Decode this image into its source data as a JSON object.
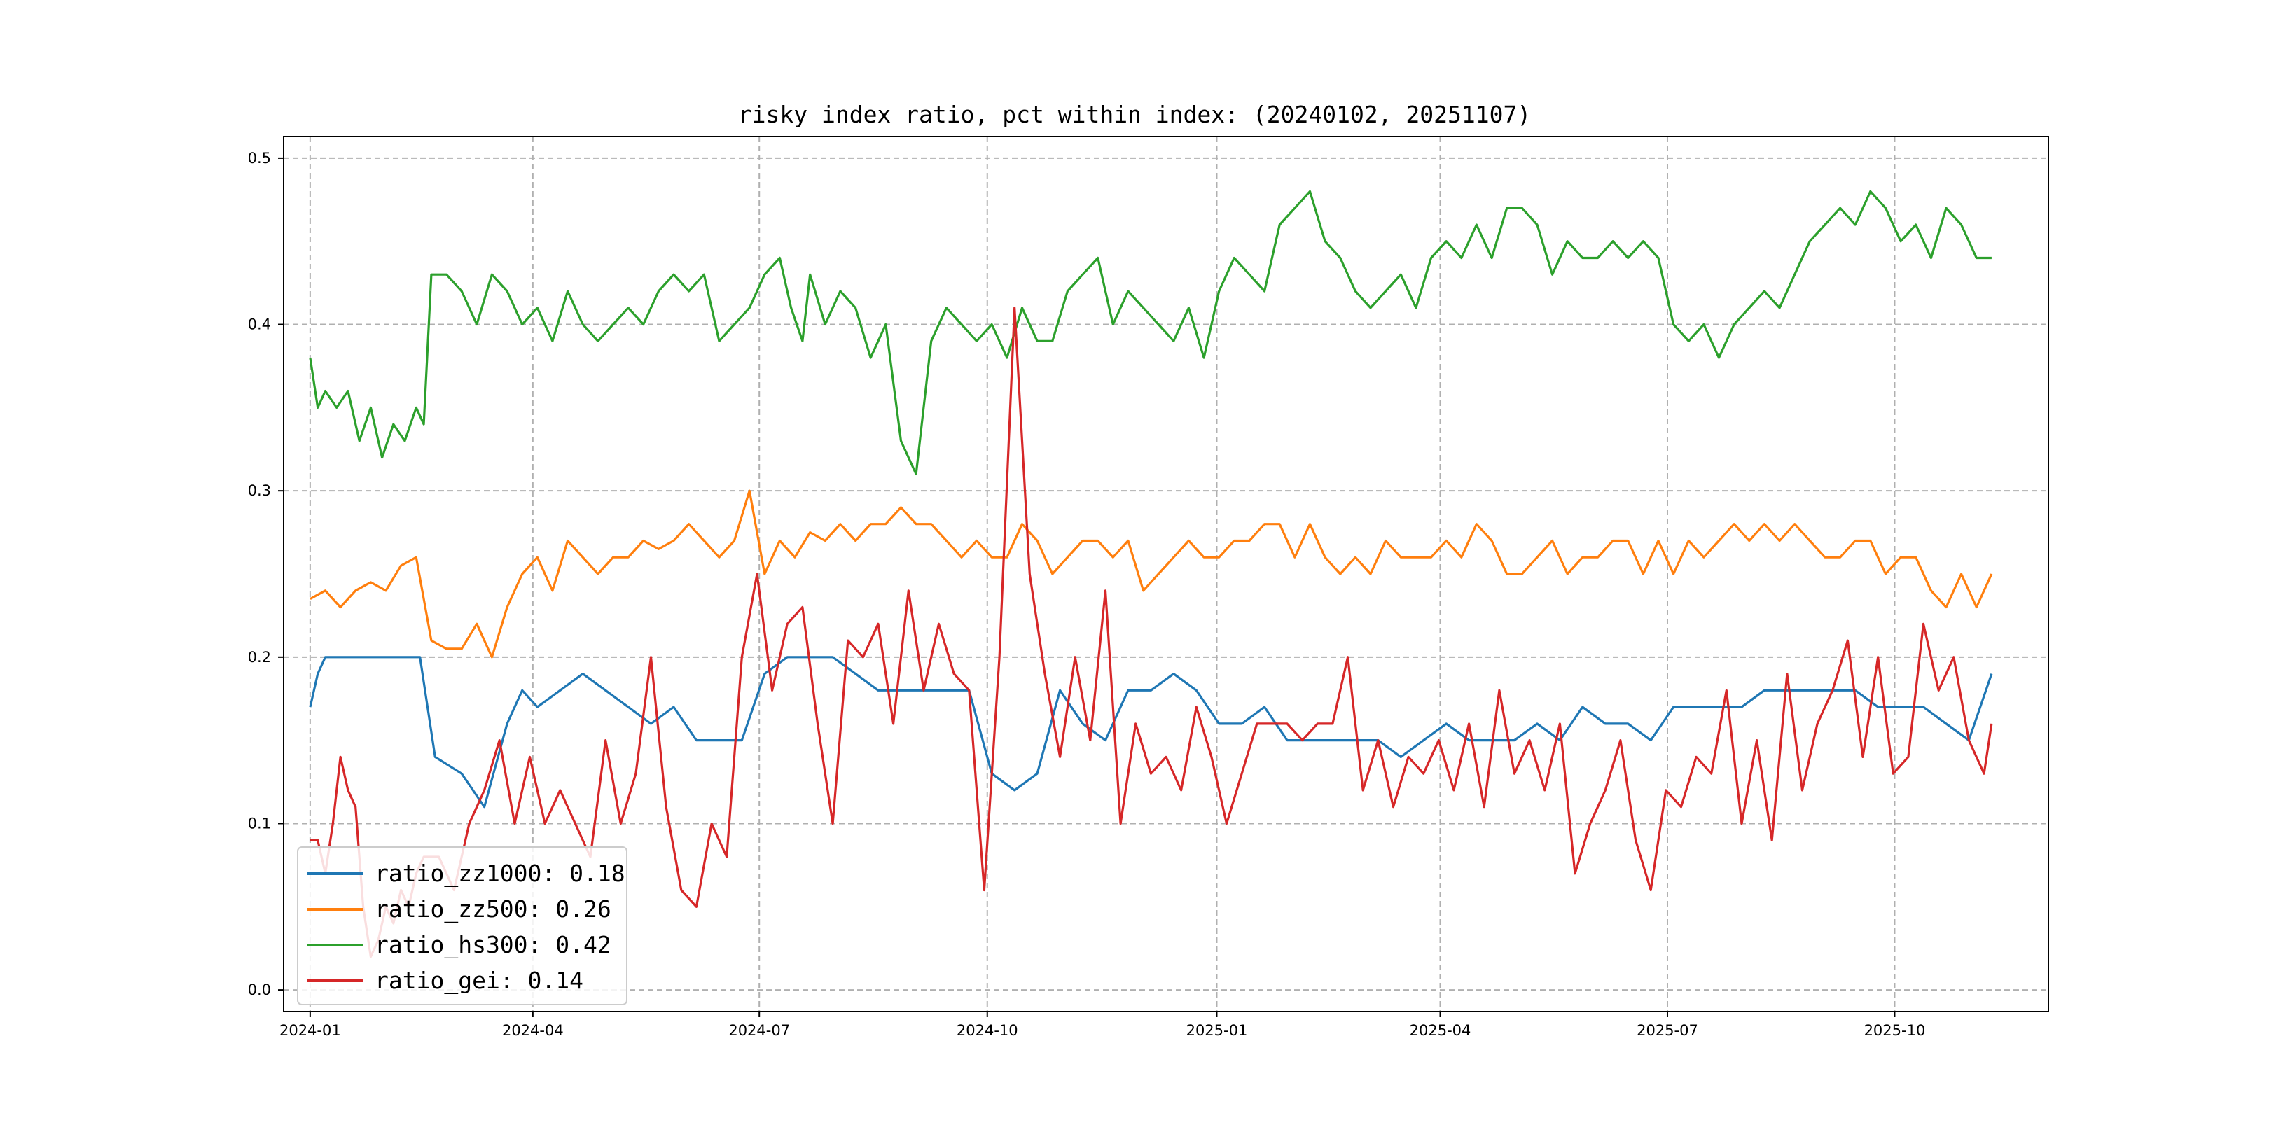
{
  "chart_data": {
    "type": "line",
    "title": "risky index ratio, pct within index: (20240102, 20251107)",
    "xlabel": "",
    "ylabel": "",
    "x_range": [
      "2024-01-02",
      "2025-11-07"
    ],
    "xlim": [
      -0.35,
      22.95
    ],
    "ylim": [
      -0.013,
      0.513
    ],
    "grid": true,
    "legend_position": "lower-left",
    "x_ticks": [
      {
        "label": "2024-01",
        "pos": 0
      },
      {
        "label": "2024-04",
        "pos": 2.94
      },
      {
        "label": "2024-07",
        "pos": 5.93
      },
      {
        "label": "2024-10",
        "pos": 8.94
      },
      {
        "label": "2025-01",
        "pos": 11.97
      },
      {
        "label": "2025-04",
        "pos": 14.92
      },
      {
        "label": "2025-07",
        "pos": 17.92
      },
      {
        "label": "2025-10",
        "pos": 20.92
      }
    ],
    "y_ticks": [
      0.0,
      0.1,
      0.2,
      0.3,
      0.4,
      0.5
    ],
    "y_tick_labels": [
      "0.0",
      "0.1",
      "0.2",
      "0.3",
      "0.4",
      "0.5"
    ],
    "series": [
      {
        "name": "ratio_zz1000",
        "legend_label": "ratio_zz1000: 0.18",
        "color": "#1f77b4",
        "x": [
          0.0,
          0.1,
          0.2,
          0.35,
          0.5,
          0.7,
          0.9,
          1.1,
          1.3,
          1.45,
          1.55,
          1.65,
          2.0,
          2.3,
          2.6,
          2.8,
          3.0,
          3.3,
          3.6,
          3.9,
          4.2,
          4.5,
          4.8,
          5.1,
          5.4,
          5.7,
          6.0,
          6.3,
          6.6,
          6.9,
          7.2,
          7.5,
          7.8,
          8.1,
          8.4,
          8.7,
          9.0,
          9.3,
          9.6,
          9.9,
          10.2,
          10.5,
          10.8,
          11.1,
          11.4,
          11.7,
          12.0,
          12.3,
          12.6,
          12.9,
          13.2,
          13.5,
          13.8,
          14.1,
          14.4,
          14.7,
          15.0,
          15.3,
          15.6,
          15.9,
          16.2,
          16.5,
          16.8,
          17.1,
          17.4,
          17.7,
          18.0,
          18.3,
          18.6,
          18.9,
          19.2,
          19.5,
          19.8,
          20.1,
          20.4,
          20.7,
          21.0,
          21.3,
          21.6,
          21.9,
          22.2
        ],
        "y": [
          0.17,
          0.19,
          0.2,
          0.2,
          0.2,
          0.2,
          0.2,
          0.2,
          0.2,
          0.2,
          0.17,
          0.14,
          0.13,
          0.11,
          0.16,
          0.18,
          0.17,
          0.18,
          0.19,
          0.18,
          0.17,
          0.16,
          0.17,
          0.15,
          0.15,
          0.15,
          0.19,
          0.2,
          0.2,
          0.2,
          0.19,
          0.18,
          0.18,
          0.18,
          0.18,
          0.18,
          0.13,
          0.12,
          0.13,
          0.18,
          0.16,
          0.15,
          0.18,
          0.18,
          0.19,
          0.18,
          0.16,
          0.16,
          0.17,
          0.15,
          0.15,
          0.15,
          0.15,
          0.15,
          0.14,
          0.15,
          0.16,
          0.15,
          0.15,
          0.15,
          0.16,
          0.15,
          0.17,
          0.16,
          0.16,
          0.15,
          0.17,
          0.17,
          0.17,
          0.17,
          0.18,
          0.18,
          0.18,
          0.18,
          0.18,
          0.17,
          0.17,
          0.17,
          0.16,
          0.15,
          0.19
        ]
      },
      {
        "name": "ratio_zz500",
        "legend_label": "ratio_zz500: 0.26",
        "color": "#ff7f0e",
        "x": [
          0.0,
          0.2,
          0.4,
          0.6,
          0.8,
          1.0,
          1.2,
          1.4,
          1.6,
          1.8,
          2.0,
          2.2,
          2.4,
          2.6,
          2.8,
          3.0,
          3.2,
          3.4,
          3.6,
          3.8,
          4.0,
          4.2,
          4.4,
          4.6,
          4.8,
          5.0,
          5.2,
          5.4,
          5.6,
          5.8,
          6.0,
          6.2,
          6.4,
          6.6,
          6.8,
          7.0,
          7.2,
          7.4,
          7.6,
          7.8,
          8.0,
          8.2,
          8.4,
          8.6,
          8.8,
          9.0,
          9.2,
          9.4,
          9.6,
          9.8,
          10.0,
          10.2,
          10.4,
          10.6,
          10.8,
          11.0,
          11.2,
          11.4,
          11.6,
          11.8,
          12.0,
          12.2,
          12.4,
          12.6,
          12.8,
          13.0,
          13.2,
          13.4,
          13.6,
          13.8,
          14.0,
          14.2,
          14.4,
          14.6,
          14.8,
          15.0,
          15.2,
          15.4,
          15.6,
          15.8,
          16.0,
          16.2,
          16.4,
          16.6,
          16.8,
          17.0,
          17.2,
          17.4,
          17.6,
          17.8,
          18.0,
          18.2,
          18.4,
          18.6,
          18.8,
          19.0,
          19.2,
          19.4,
          19.6,
          19.8,
          20.0,
          20.2,
          20.4,
          20.6,
          20.8,
          21.0,
          21.2,
          21.4,
          21.6,
          21.8,
          22.0,
          22.2
        ],
        "y": [
          0.235,
          0.24,
          0.23,
          0.24,
          0.245,
          0.24,
          0.255,
          0.26,
          0.21,
          0.205,
          0.205,
          0.22,
          0.2,
          0.23,
          0.25,
          0.26,
          0.24,
          0.27,
          0.26,
          0.25,
          0.26,
          0.26,
          0.27,
          0.265,
          0.27,
          0.28,
          0.27,
          0.26,
          0.27,
          0.3,
          0.25,
          0.27,
          0.26,
          0.275,
          0.27,
          0.28,
          0.27,
          0.28,
          0.28,
          0.29,
          0.28,
          0.28,
          0.27,
          0.26,
          0.27,
          0.26,
          0.26,
          0.28,
          0.27,
          0.25,
          0.26,
          0.27,
          0.27,
          0.26,
          0.27,
          0.24,
          0.25,
          0.26,
          0.27,
          0.26,
          0.26,
          0.27,
          0.27,
          0.28,
          0.28,
          0.26,
          0.28,
          0.26,
          0.25,
          0.26,
          0.25,
          0.27,
          0.26,
          0.26,
          0.26,
          0.27,
          0.26,
          0.28,
          0.27,
          0.25,
          0.25,
          0.26,
          0.27,
          0.25,
          0.26,
          0.26,
          0.27,
          0.27,
          0.25,
          0.27,
          0.25,
          0.27,
          0.26,
          0.27,
          0.28,
          0.27,
          0.28,
          0.27,
          0.28,
          0.27,
          0.26,
          0.26,
          0.27,
          0.27,
          0.25,
          0.26,
          0.26,
          0.24,
          0.23,
          0.25,
          0.23,
          0.25
        ]
      },
      {
        "name": "ratio_hs300",
        "legend_label": "ratio_hs300: 0.42",
        "color": "#2ca02c",
        "x": [
          0.0,
          0.1,
          0.2,
          0.35,
          0.5,
          0.65,
          0.8,
          0.95,
          1.1,
          1.25,
          1.4,
          1.5,
          1.6,
          1.8,
          2.0,
          2.2,
          2.4,
          2.6,
          2.8,
          3.0,
          3.2,
          3.4,
          3.6,
          3.8,
          4.0,
          4.2,
          4.4,
          4.6,
          4.8,
          5.0,
          5.2,
          5.4,
          5.6,
          5.8,
          6.0,
          6.2,
          6.35,
          6.5,
          6.6,
          6.8,
          7.0,
          7.2,
          7.4,
          7.6,
          7.8,
          8.0,
          8.2,
          8.4,
          8.6,
          8.8,
          9.0,
          9.2,
          9.4,
          9.6,
          9.8,
          10.0,
          10.2,
          10.4,
          10.6,
          10.8,
          11.0,
          11.2,
          11.4,
          11.6,
          11.8,
          12.0,
          12.2,
          12.4,
          12.6,
          12.8,
          13.0,
          13.2,
          13.4,
          13.6,
          13.8,
          14.0,
          14.2,
          14.4,
          14.6,
          14.8,
          15.0,
          15.2,
          15.4,
          15.6,
          15.8,
          16.0,
          16.2,
          16.4,
          16.6,
          16.8,
          17.0,
          17.2,
          17.4,
          17.6,
          17.8,
          18.0,
          18.2,
          18.4,
          18.6,
          18.8,
          19.0,
          19.2,
          19.4,
          19.6,
          19.8,
          20.0,
          20.2,
          20.4,
          20.6,
          20.8,
          21.0,
          21.2,
          21.4,
          21.6,
          21.8,
          22.0,
          22.2
        ],
        "y": [
          0.38,
          0.35,
          0.36,
          0.35,
          0.36,
          0.33,
          0.35,
          0.32,
          0.34,
          0.33,
          0.35,
          0.34,
          0.43,
          0.43,
          0.42,
          0.4,
          0.43,
          0.42,
          0.4,
          0.41,
          0.39,
          0.42,
          0.4,
          0.39,
          0.4,
          0.41,
          0.4,
          0.42,
          0.43,
          0.42,
          0.43,
          0.39,
          0.4,
          0.41,
          0.43,
          0.44,
          0.41,
          0.39,
          0.43,
          0.4,
          0.42,
          0.41,
          0.38,
          0.4,
          0.33,
          0.31,
          0.39,
          0.41,
          0.4,
          0.39,
          0.4,
          0.38,
          0.41,
          0.39,
          0.39,
          0.42,
          0.43,
          0.44,
          0.4,
          0.42,
          0.41,
          0.4,
          0.39,
          0.41,
          0.38,
          0.42,
          0.44,
          0.43,
          0.42,
          0.46,
          0.47,
          0.48,
          0.45,
          0.44,
          0.42,
          0.41,
          0.42,
          0.43,
          0.41,
          0.44,
          0.45,
          0.44,
          0.46,
          0.44,
          0.47,
          0.47,
          0.46,
          0.43,
          0.45,
          0.44,
          0.44,
          0.45,
          0.44,
          0.45,
          0.44,
          0.4,
          0.39,
          0.4,
          0.38,
          0.4,
          0.41,
          0.42,
          0.41,
          0.43,
          0.45,
          0.46,
          0.47,
          0.46,
          0.48,
          0.47,
          0.45,
          0.46,
          0.44,
          0.47,
          0.46,
          0.44,
          0.44
        ]
      },
      {
        "name": "ratio_gei",
        "legend_label": "ratio_gei: 0.14",
        "color": "#d62728",
        "x": [
          0.0,
          0.1,
          0.2,
          0.3,
          0.4,
          0.5,
          0.6,
          0.7,
          0.8,
          0.9,
          1.0,
          1.1,
          1.2,
          1.3,
          1.4,
          1.5,
          1.7,
          1.9,
          2.1,
          2.3,
          2.5,
          2.7,
          2.9,
          3.1,
          3.3,
          3.5,
          3.7,
          3.9,
          4.1,
          4.3,
          4.5,
          4.7,
          4.9,
          5.1,
          5.3,
          5.5,
          5.7,
          5.9,
          6.1,
          6.3,
          6.5,
          6.7,
          6.9,
          7.1,
          7.3,
          7.5,
          7.7,
          7.9,
          8.1,
          8.3,
          8.5,
          8.7,
          8.9,
          9.1,
          9.3,
          9.5,
          9.7,
          9.9,
          10.1,
          10.3,
          10.5,
          10.7,
          10.9,
          11.1,
          11.3,
          11.5,
          11.7,
          11.9,
          12.1,
          12.3,
          12.5,
          12.7,
          12.9,
          13.1,
          13.3,
          13.5,
          13.7,
          13.9,
          14.1,
          14.3,
          14.5,
          14.7,
          14.9,
          15.1,
          15.3,
          15.5,
          15.7,
          15.9,
          16.1,
          16.3,
          16.5,
          16.7,
          16.9,
          17.1,
          17.3,
          17.5,
          17.7,
          17.9,
          18.1,
          18.3,
          18.5,
          18.7,
          18.9,
          19.1,
          19.3,
          19.5,
          19.7,
          19.9,
          20.1,
          20.3,
          20.5,
          20.7,
          20.9,
          21.1,
          21.3,
          21.5,
          21.7,
          21.9,
          22.1,
          22.2
        ],
        "y": [
          0.09,
          0.09,
          0.07,
          0.1,
          0.14,
          0.12,
          0.11,
          0.05,
          0.02,
          0.03,
          0.05,
          0.04,
          0.06,
          0.05,
          0.07,
          0.08,
          0.08,
          0.06,
          0.1,
          0.12,
          0.15,
          0.1,
          0.14,
          0.1,
          0.12,
          0.1,
          0.08,
          0.15,
          0.1,
          0.13,
          0.2,
          0.11,
          0.06,
          0.05,
          0.1,
          0.08,
          0.2,
          0.25,
          0.18,
          0.22,
          0.23,
          0.16,
          0.1,
          0.21,
          0.2,
          0.22,
          0.16,
          0.24,
          0.18,
          0.22,
          0.19,
          0.18,
          0.06,
          0.2,
          0.41,
          0.25,
          0.19,
          0.14,
          0.2,
          0.15,
          0.24,
          0.1,
          0.16,
          0.13,
          0.14,
          0.12,
          0.17,
          0.14,
          0.1,
          0.13,
          0.16,
          0.16,
          0.16,
          0.15,
          0.16,
          0.16,
          0.2,
          0.12,
          0.15,
          0.11,
          0.14,
          0.13,
          0.15,
          0.12,
          0.16,
          0.11,
          0.18,
          0.13,
          0.15,
          0.12,
          0.16,
          0.07,
          0.1,
          0.12,
          0.15,
          0.09,
          0.06,
          0.12,
          0.11,
          0.14,
          0.13,
          0.18,
          0.1,
          0.15,
          0.09,
          0.19,
          0.12,
          0.16,
          0.18,
          0.21,
          0.14,
          0.2,
          0.13,
          0.14,
          0.22,
          0.18,
          0.2,
          0.15,
          0.13,
          0.16
        ]
      }
    ]
  }
}
